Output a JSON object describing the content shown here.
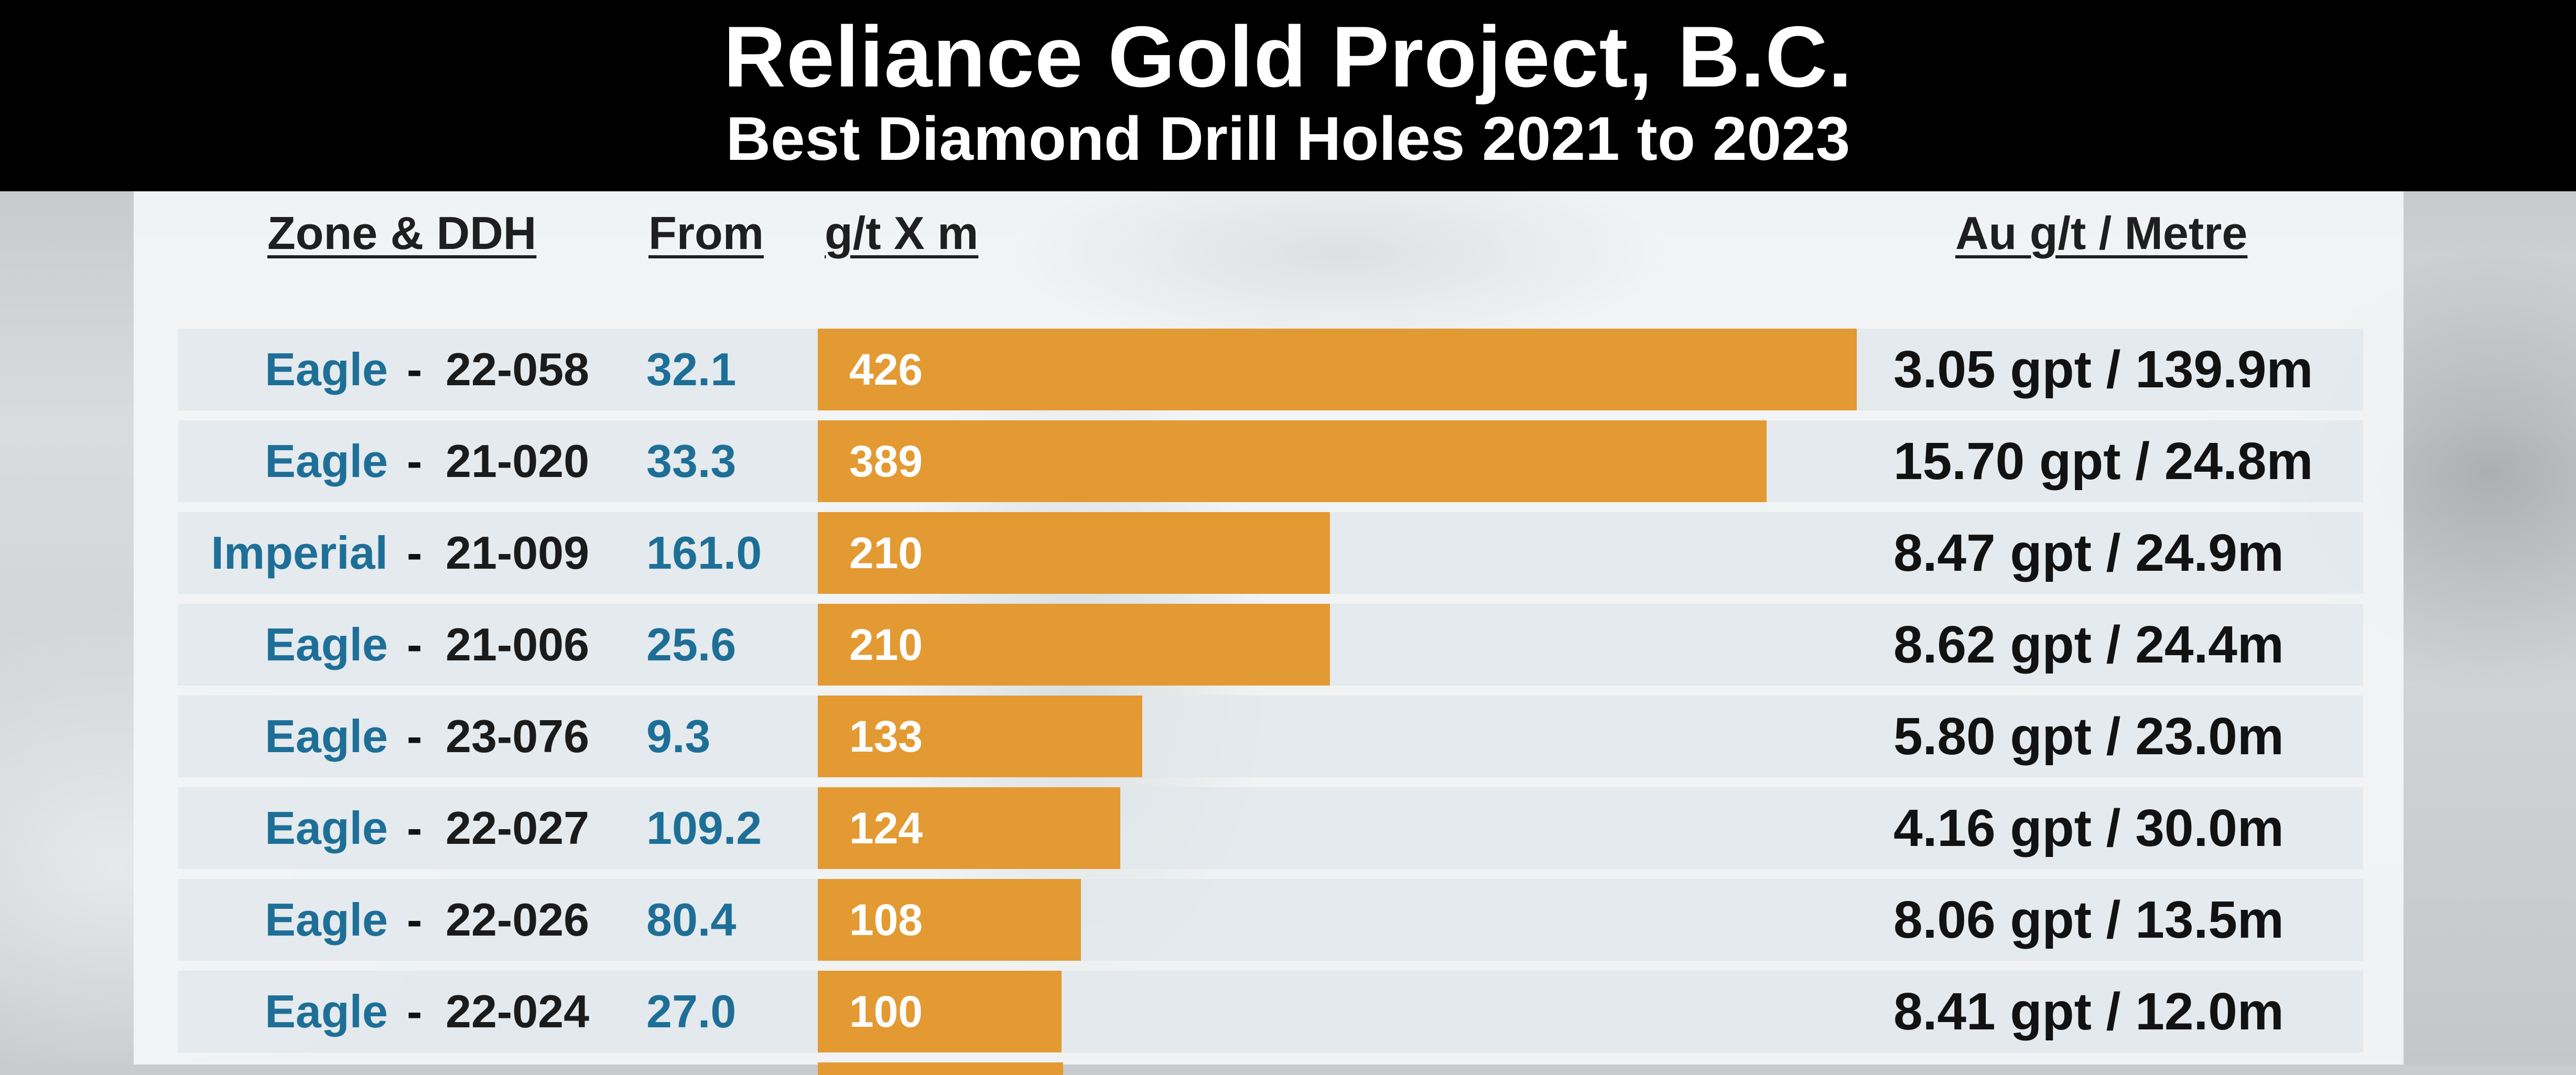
{
  "header": {
    "title": "Reliance Gold Project, B.C.",
    "subtitle": "Best Diamond Drill Holes 2021 to 2023"
  },
  "columns": {
    "zone_ddh": "Zone & DDH",
    "from": "From",
    "gtxm": "g/t X m",
    "au": "Au g/t / Metre"
  },
  "colors": {
    "bar": "#e39a33",
    "zone_text": "#1e6f97",
    "header_bg": "#000000"
  },
  "chart_data": {
    "type": "bar",
    "orientation": "horizontal",
    "title": "Reliance Gold Project, B.C.",
    "subtitle": "Best Diamond Drill Holes 2021 to 2023",
    "xlim": [
      0,
      426
    ],
    "rows": [
      {
        "zone": "Eagle",
        "sep": "-",
        "hole": "22-058",
        "from": "32.1",
        "value": 426,
        "label": "426",
        "metric": "3.05 gpt / 139.9m"
      },
      {
        "zone": "Eagle",
        "sep": "-",
        "hole": "21-020",
        "from": "33.3",
        "value": 389,
        "label": "389",
        "metric": "15.70 gpt / 24.8m"
      },
      {
        "zone": "Imperial",
        "sep": "-",
        "hole": "21-009",
        "from": "161.0",
        "value": 210,
        "label": "210",
        "metric": "8.47 gpt / 24.9m"
      },
      {
        "zone": "Eagle",
        "sep": "-",
        "hole": "21-006",
        "from": "25.6",
        "value": 210,
        "label": "210",
        "metric": "8.62 gpt / 24.4m"
      },
      {
        "zone": "Eagle",
        "sep": "-",
        "hole": "23-076",
        "from": "9.3",
        "value": 133,
        "label": "133",
        "metric": "5.80 gpt / 23.0m"
      },
      {
        "zone": "Eagle",
        "sep": "-",
        "hole": "22-027",
        "from": "109.2",
        "value": 124,
        "label": "124",
        "metric": "4.16 gpt / 30.0m"
      },
      {
        "zone": "Eagle",
        "sep": "-",
        "hole": "22-026",
        "from": "80.4",
        "value": 108,
        "label": "108",
        "metric": "8.06 gpt / 13.5m"
      },
      {
        "zone": "Eagle",
        "sep": "-",
        "hole": "22-024",
        "from": "27.0",
        "value": 100,
        "label": "100",
        "metric": "8.41 gpt / 12.0m"
      }
    ]
  }
}
